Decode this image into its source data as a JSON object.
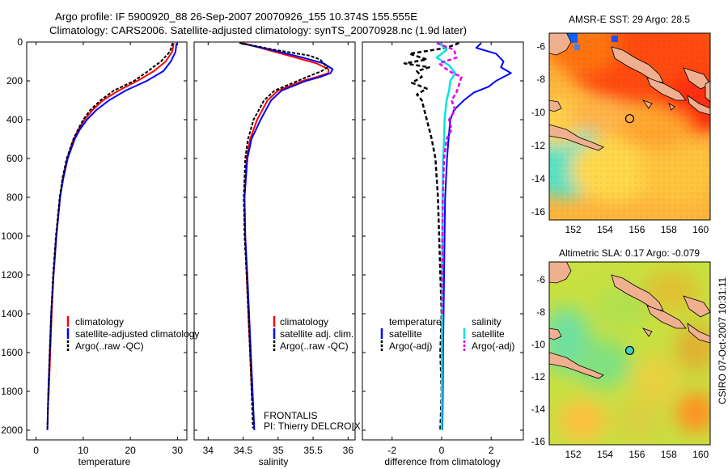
{
  "header": {
    "line1": "Argo profile: IF 5900920_88 26-Sep-2007 20070926_155 10.374S 155.555E",
    "line2": "Climatology: CARS2006. Satellite-adjusted climatology: synTS_20070928.nc (1.9d later)"
  },
  "credit": "CSIRO 07-Oct-2007 10:31:11",
  "project": {
    "name": "FRONTALIS",
    "pi": "PI: Thierry DELCROIX"
  },
  "colors": {
    "climatology": "#ff0000",
    "satellite": "#0000ff",
    "argo": "#000000",
    "satellite_salinity": "#00e5e5",
    "argo_salinity": "#e600e6"
  },
  "chart_data": [
    {
      "type": "line",
      "id": "temperature",
      "xlabel": "temperature",
      "ylabel": "",
      "xlim": [
        -2,
        32
      ],
      "ylim": [
        2050,
        0
      ],
      "xticks": [
        0,
        10,
        20,
        30
      ],
      "yticks": [
        0,
        200,
        400,
        600,
        800,
        1000,
        1200,
        1400,
        1600,
        1800,
        2000
      ],
      "legend": [
        "climatology",
        "satellite-adjusted climatology",
        "Argo(..raw -QC)"
      ],
      "series": [
        {
          "name": "climatology",
          "depth": [
            5,
            50,
            100,
            150,
            200,
            250,
            300,
            350,
            400,
            450,
            500,
            600,
            700,
            800,
            1000,
            1200,
            1400,
            1600,
            1800,
            1850
          ],
          "values": [
            29.2,
            28.9,
            27.5,
            25,
            21.5,
            17.5,
            14.2,
            12,
            10.3,
            9,
            8,
            6.6,
            5.7,
            5.1,
            4.3,
            3.7,
            3.3,
            3,
            2.7,
            2.6
          ]
        },
        {
          "name": "satellite-adjusted climatology",
          "depth": [
            5,
            50,
            100,
            150,
            200,
            250,
            300,
            350,
            400,
            450,
            500,
            600,
            700,
            800,
            1000,
            1200,
            1400,
            1600,
            1800,
            2000
          ],
          "values": [
            29.8,
            29.6,
            28.6,
            27,
            23.5,
            19,
            15.5,
            12.8,
            10.8,
            9.3,
            8.2,
            6.7,
            5.8,
            5.1,
            4.3,
            3.7,
            3.2,
            2.9,
            2.6,
            2.4
          ]
        },
        {
          "name": "Argo(..raw -QC)",
          "depth": [
            5,
            50,
            100,
            130,
            150,
            200,
            250,
            300,
            350,
            400,
            450,
            500,
            600,
            700,
            800,
            1000,
            1200,
            1400,
            1600,
            1800,
            1990
          ],
          "values": [
            29,
            28.4,
            26.5,
            24.8,
            23.8,
            20.8,
            16.5,
            13.7,
            11.5,
            10,
            8.9,
            7.9,
            6.5,
            5.6,
            5,
            4.2,
            3.6,
            3.2,
            2.9,
            2.6,
            2.4
          ]
        }
      ]
    },
    {
      "type": "line",
      "id": "salinity",
      "xlabel": "salinity",
      "ylabel": "",
      "xlim": [
        33.8,
        36.1
      ],
      "ylim": [
        2050,
        0
      ],
      "xticks": [
        34,
        34.5,
        35,
        35.5,
        36
      ],
      "yticks": [
        0,
        200,
        400,
        600,
        800,
        1000,
        1200,
        1400,
        1600,
        1800,
        2000
      ],
      "legend": [
        "climatology",
        "satellite adj. clim.",
        "Argo(..raw -QC)"
      ],
      "series": [
        {
          "name": "climatology",
          "depth": [
            5,
            40,
            80,
            110,
            140,
            160,
            180,
            200,
            250,
            300,
            400,
            500,
            600,
            800,
            1000,
            1200,
            1600,
            1850
          ],
          "values": [
            34.5,
            34.85,
            35.25,
            35.55,
            35.72,
            35.72,
            35.55,
            35.35,
            35,
            34.85,
            34.7,
            34.6,
            34.55,
            34.52,
            34.53,
            34.55,
            34.6,
            34.63
          ]
        },
        {
          "name": "satellite adj. clim.",
          "depth": [
            5,
            40,
            80,
            110,
            140,
            160,
            180,
            200,
            250,
            300,
            400,
            500,
            600,
            800,
            1000,
            1200,
            1600,
            2000
          ],
          "values": [
            34.45,
            34.9,
            35.35,
            35.65,
            35.78,
            35.75,
            35.6,
            35.4,
            35.05,
            34.9,
            34.75,
            34.62,
            34.56,
            34.52,
            34.53,
            34.56,
            34.61,
            34.66
          ]
        },
        {
          "name": "Argo(..raw -QC)",
          "depth": [
            5,
            40,
            70,
            90,
            110,
            130,
            150,
            170,
            200,
            250,
            300,
            400,
            500,
            600,
            800,
            1000,
            1200,
            1600,
            1990
          ],
          "values": [
            34.45,
            34.95,
            35.45,
            35.6,
            35.65,
            35.7,
            35.62,
            35.48,
            35.28,
            34.95,
            34.8,
            34.65,
            34.57,
            34.53,
            34.51,
            34.52,
            34.55,
            34.6,
            34.64
          ]
        }
      ]
    },
    {
      "type": "line",
      "id": "difference",
      "xlabel": "difference from climatology",
      "ylabel": "",
      "xlim": [
        -3.2,
        3.3
      ],
      "ylim": [
        2050,
        0
      ],
      "xticks": [
        -2,
        0,
        2
      ],
      "yticks": [
        0,
        200,
        400,
        600,
        800,
        1000,
        1200,
        1400,
        1600,
        1800,
        2000
      ],
      "legend": {
        "temperature_title": "temperature",
        "salinity_title": "salinity",
        "temperature_items": [
          "satellite",
          "Argo(-adj)"
        ],
        "salinity_items": [
          "satellite",
          "Argo(-adj)"
        ]
      },
      "series": [
        {
          "name": "temperature satellite",
          "depth": [
            5,
            30,
            60,
            100,
            130,
            160,
            200,
            230,
            260,
            300,
            350,
            400,
            500,
            600,
            800,
            1000,
            1200,
            1400,
            1600,
            1800,
            2000
          ],
          "values": [
            1.6,
            1.4,
            2.2,
            2.5,
            2.4,
            2.8,
            2.2,
            1.9,
            1.3,
            0.9,
            0.5,
            0.35,
            0.28,
            0.22,
            0.14,
            0.12,
            0.1,
            0.08,
            0.06,
            0.05,
            0.03
          ]
        },
        {
          "name": "temperature Argo(-adj)",
          "depth": [
            5,
            30,
            60,
            90,
            110,
            130,
            150,
            180,
            210,
            240,
            270,
            300,
            350,
            400,
            450,
            500,
            600,
            800,
            1000,
            1200,
            1400,
            1600,
            1800,
            2000
          ],
          "values": [
            0.7,
            0.2,
            -1.3,
            -0.6,
            -1.5,
            -0.5,
            -1.0,
            -0.8,
            -1.2,
            -0.6,
            -1.0,
            -0.8,
            -0.7,
            -0.6,
            -0.5,
            -0.4,
            -0.25,
            -0.15,
            -0.1,
            -0.05,
            0,
            -0.05,
            0,
            -0.05
          ]
        },
        {
          "name": "salinity satellite",
          "depth": [
            5,
            40,
            80,
            120,
            160,
            200,
            250,
            300,
            400,
            500,
            600,
            800,
            1000,
            1200,
            1400,
            1600,
            1800,
            2000
          ],
          "values": [
            -0.1,
            0.2,
            -0.2,
            0.3,
            0.55,
            0.35,
            0.3,
            0.2,
            0.12,
            0.1,
            0.06,
            0.04,
            0.03,
            0.02,
            0.02,
            0.01,
            0.01,
            0
          ]
        },
        {
          "name": "salinity Argo(-adj)",
          "depth": [
            5,
            40,
            80,
            110,
            150,
            180,
            220,
            260,
            300,
            350,
            400,
            450,
            500,
            600,
            800,
            1000,
            1200,
            1400
          ],
          "values": [
            -0.2,
            0.5,
            0.6,
            -0.1,
            0.3,
            0.8,
            0.7,
            0.6,
            0.4,
            0.55,
            0.3,
            0.4,
            0.2,
            0.1,
            0.05,
            0.03,
            0.02,
            0.01
          ]
        }
      ]
    },
    {
      "type": "heatmap",
      "id": "sst-map",
      "title": "AMSR-E SST: 29 Argo: 28.5",
      "xlim": [
        150.5,
        160.6
      ],
      "ylim": [
        -16.5,
        -5.2
      ],
      "xticks": [
        152,
        154,
        156,
        158,
        160
      ],
      "yticks": [
        -6,
        -8,
        -10,
        -12,
        -14,
        -16
      ],
      "marker": {
        "lon": 155.55,
        "lat": -10.37
      }
    },
    {
      "type": "heatmap",
      "id": "sla-map",
      "title": "Altimetric SLA: 0.17 Argo: -0.079",
      "xlim": [
        150.5,
        160.6
      ],
      "ylim": [
        -16.2,
        -4.9
      ],
      "xticks": [
        152,
        154,
        156,
        158,
        160
      ],
      "yticks": [
        -6,
        -8,
        -10,
        -12,
        -14,
        -16
      ],
      "marker": {
        "lon": 155.55,
        "lat": -10.37
      }
    }
  ]
}
